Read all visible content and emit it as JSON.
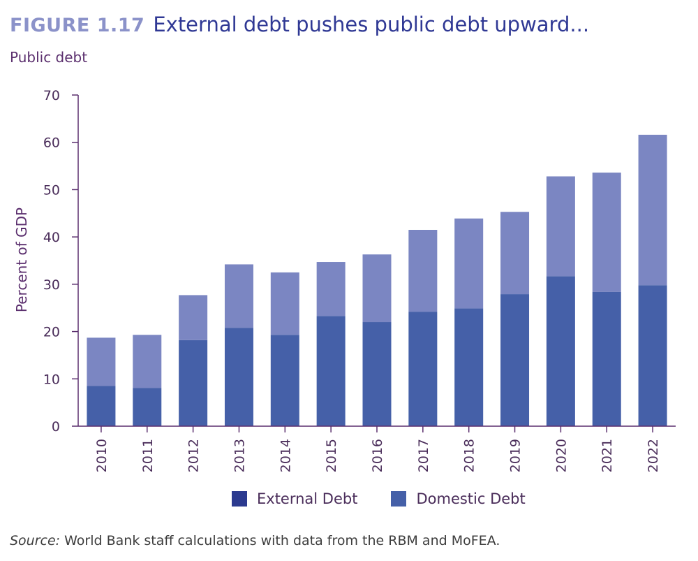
{
  "header": {
    "figure_label": "FIGURE 1.17",
    "title": "External debt pushes public debt upward...",
    "subtitle": "Public debt"
  },
  "source": {
    "prefix": "Source:",
    "text": " World Bank staff calculations with data from the RBM and MoFEA."
  },
  "colors": {
    "external": "#4560a8",
    "domestic": "#7b86c2",
    "legend_external": "#2b3a8f",
    "legend_domestic": "#4560a8",
    "axis": "#5b2f6e"
  },
  "legend": [
    {
      "label": "External Debt",
      "color_key": "legend_external"
    },
    {
      "label": "Domestic Debt",
      "color_key": "legend_domestic"
    }
  ],
  "chart_data": {
    "type": "bar",
    "stacked": true,
    "categories": [
      "2010",
      "2011",
      "2012",
      "2013",
      "2014",
      "2015",
      "2016",
      "2017",
      "2018",
      "2019",
      "2020",
      "2021",
      "2022"
    ],
    "series": [
      {
        "name": "External Debt",
        "values": [
          8.5,
          8.1,
          18.2,
          20.8,
          19.3,
          23.3,
          22.0,
          24.2,
          24.9,
          27.9,
          31.7,
          28.4,
          29.8
        ]
      },
      {
        "name": "Domestic Debt",
        "values": [
          10.2,
          11.2,
          9.5,
          13.4,
          13.2,
          11.4,
          14.3,
          17.3,
          19.0,
          17.4,
          21.1,
          25.2,
          31.8
        ]
      }
    ],
    "ylabel": "Percent of GDP",
    "ylim": [
      0,
      70
    ],
    "yticks": [
      0,
      10,
      20,
      30,
      40,
      50,
      60,
      70
    ],
    "grid": false,
    "legend_position": "bottom"
  }
}
